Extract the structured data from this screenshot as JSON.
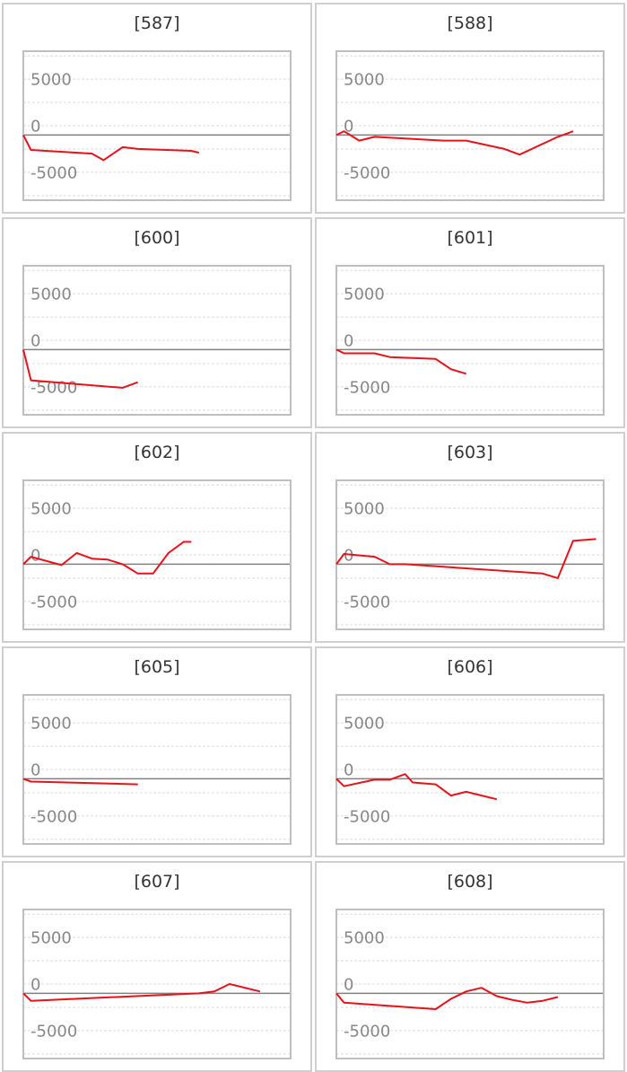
{
  "colors": {
    "line": "#e8121b",
    "frame": "#bfbfbf",
    "zero_line": "#808080",
    "gridline": "#dcdcdc",
    "panel_border": "#cfcfcf",
    "tick_text": "#888888"
  },
  "chart_data": [
    {
      "type": "line",
      "title": "[587]",
      "ylim": [
        -7000,
        9000
      ],
      "yticks": [
        "5000",
        "0",
        "-5000"
      ],
      "xlim": [
        0,
        35
      ],
      "series": [
        {
          "x": [
            0,
            1,
            9,
            10.5,
            13,
            15,
            22,
            23
          ],
          "y": [
            0,
            -1600,
            -2000,
            -2700,
            -1300,
            -1500,
            -1700,
            -1900
          ]
        }
      ]
    },
    {
      "type": "line",
      "title": "[588]",
      "ylim": [
        -7000,
        9000
      ],
      "yticks": [
        "5000",
        "0",
        "-5000"
      ],
      "xlim": [
        0,
        35
      ],
      "series": [
        {
          "x": [
            0,
            1,
            3,
            5,
            14,
            17,
            22,
            24,
            29,
            31
          ],
          "y": [
            0,
            400,
            -600,
            -200,
            -600,
            -600,
            -1500,
            -2100,
            -200,
            400
          ]
        }
      ]
    },
    {
      "type": "line",
      "title": "[600]",
      "ylim": [
        -7000,
        9000
      ],
      "yticks": [
        "5000",
        "0",
        "-5000"
      ],
      "xlim": [
        0,
        35
      ],
      "series": [
        {
          "x": [
            0,
            1,
            13,
            15
          ],
          "y": [
            0,
            -3300,
            -4100,
            -3500
          ]
        }
      ]
    },
    {
      "type": "line",
      "title": "[601]",
      "ylim": [
        -7000,
        9000
      ],
      "yticks": [
        "5000",
        "0",
        "-5000"
      ],
      "xlim": [
        0,
        35
      ],
      "series": [
        {
          "x": [
            0,
            1,
            5,
            7,
            13,
            15,
            17
          ],
          "y": [
            0,
            -400,
            -400,
            -800,
            -1000,
            -2100,
            -2600
          ]
        }
      ]
    },
    {
      "type": "line",
      "title": "[602]",
      "ylim": [
        -7000,
        9000
      ],
      "yticks": [
        "5000",
        "0",
        "-5000"
      ],
      "xlim": [
        0,
        35
      ],
      "series": [
        {
          "x": [
            0,
            1,
            5,
            7,
            9,
            11,
            13,
            15,
            17,
            19,
            21,
            22
          ],
          "y": [
            0,
            800,
            -100,
            1200,
            600,
            500,
            0,
            -1000,
            -1000,
            1200,
            2400,
            2400
          ]
        }
      ]
    },
    {
      "type": "line",
      "title": "[603]",
      "ylim": [
        -7000,
        9000
      ],
      "yticks": [
        "5000",
        "0",
        "-5000"
      ],
      "xlim": [
        0,
        35
      ],
      "series": [
        {
          "x": [
            0,
            1,
            5,
            7,
            9,
            27,
            29,
            31,
            34
          ],
          "y": [
            0,
            1100,
            800,
            0,
            0,
            -1000,
            -1500,
            2500,
            2700
          ]
        }
      ]
    },
    {
      "type": "line",
      "title": "[605]",
      "ylim": [
        -7000,
        9000
      ],
      "yticks": [
        "5000",
        "0",
        "-5000"
      ],
      "xlim": [
        0,
        35
      ],
      "series": [
        {
          "x": [
            0,
            1,
            15
          ],
          "y": [
            0,
            -300,
            -600
          ]
        }
      ]
    },
    {
      "type": "line",
      "title": "[606]",
      "ylim": [
        -7000,
        9000
      ],
      "yticks": [
        "5000",
        "0",
        "-5000"
      ],
      "xlim": [
        0,
        35
      ],
      "series": [
        {
          "x": [
            0,
            1,
            5,
            7,
            9,
            10,
            13,
            15,
            17,
            21
          ],
          "y": [
            0,
            -800,
            -100,
            -100,
            500,
            -400,
            -600,
            -1800,
            -1400,
            -2200
          ]
        }
      ]
    },
    {
      "type": "line",
      "title": "[607]",
      "ylim": [
        -7000,
        9000
      ],
      "yticks": [
        "5000",
        "0",
        "-5000"
      ],
      "xlim": [
        0,
        35
      ],
      "series": [
        {
          "x": [
            0,
            1,
            23,
            25,
            27,
            31
          ],
          "y": [
            0,
            -800,
            0,
            200,
            1000,
            200
          ]
        }
      ]
    },
    {
      "type": "line",
      "title": "[608]",
      "ylim": [
        -7000,
        9000
      ],
      "yticks": [
        "5000",
        "0",
        "-5000"
      ],
      "xlim": [
        0,
        35
      ],
      "series": [
        {
          "x": [
            0,
            1,
            13,
            15,
            17,
            19,
            21,
            23,
            25,
            27,
            29
          ],
          "y": [
            0,
            -1000,
            -1700,
            -600,
            200,
            600,
            -300,
            -700,
            -1000,
            -800,
            -400
          ]
        }
      ]
    }
  ]
}
